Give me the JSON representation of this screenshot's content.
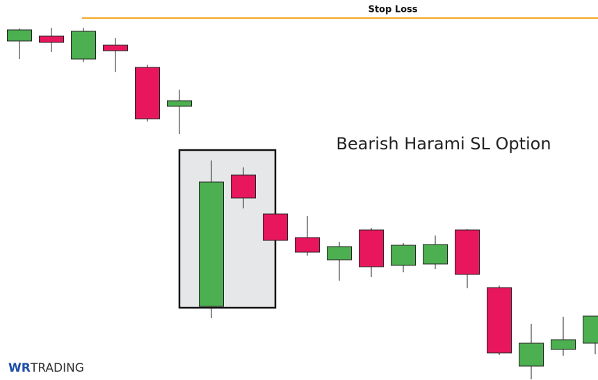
{
  "chart_data": {
    "type": "candlestick",
    "categories": [
      null,
      null,
      null,
      null,
      null,
      null,
      null,
      null,
      null,
      null,
      null,
      null,
      null,
      null,
      null,
      null,
      null,
      null,
      null
    ],
    "open": [
      488,
      495,
      462,
      482,
      450,
      394,
      106,
      295,
      239,
      205,
      173,
      216,
      165,
      167,
      216,
      133,
      20,
      44,
      53
    ],
    "high": [
      506,
      507,
      507,
      492,
      454,
      418,
      316,
      306,
      239,
      236,
      199,
      219,
      197,
      208,
      217,
      136,
      81,
      91,
      92
    ],
    "low": [
      462,
      472,
      458,
      443,
      372,
      354,
      89,
      247,
      201,
      179,
      143,
      148,
      155,
      160,
      132,
      36,
      1,
      35,
      37
    ],
    "close": [
      504,
      486,
      502,
      474,
      376,
      402,
      285,
      262,
      201,
      184,
      192,
      163,
      194,
      195,
      152,
      39,
      53,
      58,
      92
    ],
    "up_color": "#4caf50",
    "down_color": "#e8175d",
    "ylim": [
      0,
      547
    ],
    "stop_loss": {
      "label": "Stop Loss",
      "value": 521,
      "color": "#f5a623"
    },
    "annotation": "Bearish Harami SL Option"
  },
  "brand": {
    "mark": "WR",
    "name": "TRADING"
  }
}
